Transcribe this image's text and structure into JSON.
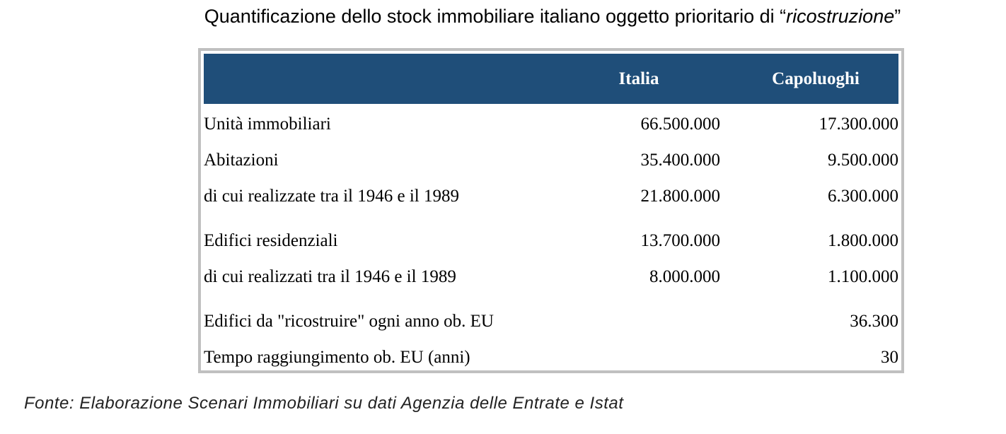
{
  "title": {
    "prefix": "Quantificazione dello stock immobiliare italiano oggetto prioritario di “",
    "italic": "ricostruzione",
    "suffix": "”"
  },
  "chart_data": {
    "type": "table",
    "columns": [
      "",
      "Italia",
      "Capoluoghi"
    ],
    "rows": [
      {
        "label": "Unità immobiliari",
        "italia": "66.500.000",
        "capoluoghi": "17.300.000"
      },
      {
        "label": "Abitazioni",
        "italia": "35.400.000",
        "capoluoghi": "9.500.000"
      },
      {
        "label": "di cui realizzate tra il 1946 e il 1989",
        "italia": "21.800.000",
        "capoluoghi": "6.300.000"
      },
      {
        "label": "Edifici residenziali",
        "italia": "13.700.000",
        "capoluoghi": "1.800.000"
      },
      {
        "label": "di cui realizzati tra il 1946 e il 1989",
        "italia": "8.000.000",
        "capoluoghi": "1.100.000"
      },
      {
        "label": "Edifici da \"ricostruire\" ogni anno ob. EU",
        "italia": "",
        "capoluoghi": "36.300"
      },
      {
        "label": "Tempo raggiungimento ob. EU (anni)",
        "italia": "",
        "capoluoghi": "30"
      }
    ],
    "header_color": "#1f4e79",
    "border_color": "#c0c0c0"
  },
  "source": "Fonte: Elaborazione Scenari Immobiliari su dati Agenzia delle Entrate e Istat"
}
